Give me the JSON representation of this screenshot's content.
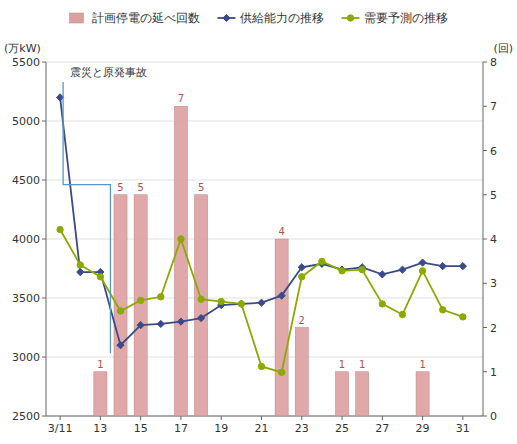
{
  "chart_data": {
    "type": "line",
    "x": [
      11,
      12,
      13,
      14,
      15,
      16,
      17,
      18,
      19,
      20,
      21,
      22,
      23,
      24,
      25,
      26,
      27,
      28,
      29,
      30,
      31
    ],
    "series": [
      {
        "name": "計画停電の延べ回数",
        "type": "bar",
        "axis": "y2",
        "color": "#dda0a0",
        "data_labels": true,
        "values": [
          null,
          null,
          1,
          5,
          5,
          0,
          7,
          5,
          0,
          0,
          0,
          4,
          2,
          0,
          1,
          1,
          0,
          0,
          1,
          0,
          0
        ]
      },
      {
        "name": "供給能力の推移",
        "type": "line",
        "color": "#3a4a8a",
        "marker": "diamond",
        "values": [
          5200,
          3720,
          3720,
          3100,
          3270,
          3280,
          3300,
          3330,
          3440,
          3450,
          3460,
          3520,
          3760,
          3790,
          3740,
          3760,
          3700,
          3740,
          3800,
          3770,
          3770
        ]
      },
      {
        "name": "需要予測の推移",
        "type": "line",
        "color": "#8aaa00",
        "marker": "circle",
        "values": [
          4080,
          3780,
          3680,
          3390,
          3480,
          3510,
          4000,
          3490,
          3470,
          3450,
          2920,
          2870,
          3680,
          3810,
          3730,
          3740,
          3450,
          3360,
          3730,
          3400,
          3340
        ]
      }
    ],
    "xlim": [
      10.3,
      32.0
    ],
    "xticks": [
      {
        "value": 11,
        "label": "3/11"
      },
      13,
      15,
      17,
      19,
      21,
      23,
      25,
      27,
      29,
      31
    ],
    "ylim": [
      2500,
      5500
    ],
    "yticks": [
      2500,
      3000,
      3500,
      4000,
      4500,
      5000,
      5500
    ],
    "y2lim": [
      0,
      8
    ],
    "y2ticks": [
      0,
      1,
      2,
      3,
      4,
      5,
      6,
      7,
      8
    ],
    "ylabel": "(万kW)",
    "y2label": "(回)",
    "annotations": [
      {
        "text": "震災と原発事故"
      }
    ],
    "grid": true,
    "legend": "top"
  }
}
